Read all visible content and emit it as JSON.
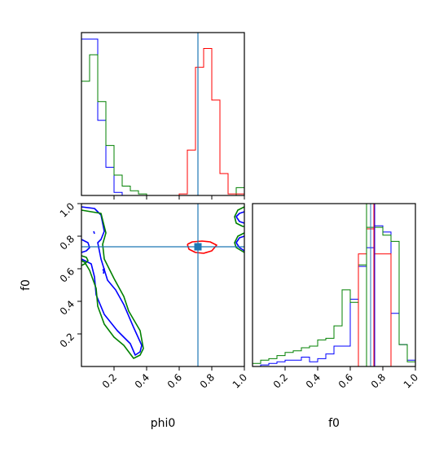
{
  "chart_data": [
    {
      "panel": "phi0-marginal",
      "type": "histogram-step",
      "xlim": [
        0,
        1
      ],
      "truth": {
        "value": 0.715,
        "color": "#1f77b4"
      },
      "series": [
        {
          "color": "#0000ff",
          "bins": [
            0,
            0.05,
            0.1,
            0.15,
            0.2,
            0.25
          ],
          "heights": [
            1.0,
            1.0,
            0.48,
            0.18,
            0.02
          ]
        },
        {
          "color": "#008000",
          "bins": [
            0,
            0.05,
            0.1,
            0.15,
            0.2,
            0.25,
            0.3,
            0.35,
            0.4,
            0.45,
            0.5,
            0.55,
            0.6,
            0.65,
            0.7,
            0.75,
            0.8,
            0.85,
            0.9,
            0.95,
            1.0
          ],
          "heights": [
            0.73,
            0.9,
            0.6,
            0.32,
            0.13,
            0.06,
            0.03,
            0.01,
            0.0,
            0.0,
            0.0,
            0.0,
            0.0,
            0.0,
            0.0,
            0.0,
            0.0,
            0.0,
            0.0,
            0.05
          ]
        },
        {
          "color": "#ff0000",
          "bins": [
            0.6,
            0.65,
            0.7,
            0.75,
            0.8,
            0.85,
            0.9,
            0.95,
            1.0
          ],
          "heights": [
            0.01,
            0.29,
            0.82,
            0.94,
            0.61,
            0.14,
            0.01,
            0.01
          ]
        }
      ],
      "tick_values": [
        0.2,
        0.4,
        0.6,
        0.8,
        1.0
      ]
    },
    {
      "panel": "phi0-vs-f0",
      "type": "contour",
      "xlabel": "phi0",
      "ylabel": "f0",
      "xlim": [
        0,
        1
      ],
      "ylim": [
        0,
        1
      ],
      "truth": {
        "x": 0.715,
        "y": 0.735,
        "color": "#1f77b4"
      },
      "x_ticks": [
        "0.2",
        "0.4",
        "0.6",
        "0.8",
        "1.0"
      ],
      "y_ticks": [
        "0.2",
        "0.4",
        "0.6",
        "0.8",
        "1.0"
      ],
      "y_tick_values": [
        0.2,
        0.4,
        0.6,
        0.8,
        1.0
      ],
      "x_tick_values": [
        0.2,
        0.4,
        0.6,
        0.8,
        1.0
      ],
      "contours": [
        {
          "color": "#0000ff",
          "points": [
            [
              0,
              0.98
            ],
            [
              0.08,
              0.97
            ],
            [
              0.12,
              0.93
            ],
            [
              0.14,
              0.83
            ],
            [
              0.12,
              0.78
            ],
            [
              0.1,
              0.76
            ],
            [
              0.12,
              0.66
            ],
            [
              0.16,
              0.53
            ],
            [
              0.21,
              0.47
            ],
            [
              0.26,
              0.38
            ],
            [
              0.32,
              0.24
            ],
            [
              0.37,
              0.13
            ],
            [
              0.36,
              0.09
            ],
            [
              0.33,
              0.07
            ],
            [
              0.3,
              0.14
            ],
            [
              0.22,
              0.22
            ],
            [
              0.14,
              0.32
            ],
            [
              0.09,
              0.44
            ],
            [
              0.08,
              0.55
            ],
            [
              0.06,
              0.63
            ],
            [
              0.0,
              0.66
            ]
          ]
        },
        {
          "color": "#008000",
          "points": [
            [
              0,
              0.96
            ],
            [
              0.12,
              0.94
            ],
            [
              0.15,
              0.82
            ],
            [
              0.13,
              0.75
            ],
            [
              0.14,
              0.66
            ],
            [
              0.2,
              0.54
            ],
            [
              0.26,
              0.43
            ],
            [
              0.29,
              0.34
            ],
            [
              0.36,
              0.22
            ],
            [
              0.38,
              0.11
            ],
            [
              0.36,
              0.07
            ],
            [
              0.32,
              0.05
            ],
            [
              0.26,
              0.13
            ],
            [
              0.2,
              0.18
            ],
            [
              0.14,
              0.26
            ],
            [
              0.1,
              0.37
            ],
            [
              0.09,
              0.48
            ],
            [
              0.05,
              0.59
            ],
            [
              0.02,
              0.64
            ],
            [
              0.0,
              0.65
            ]
          ]
        },
        {
          "color": "#0000ff",
          "points": [
            [
              0,
              0.78
            ],
            [
              0.04,
              0.76
            ],
            [
              0.05,
              0.73
            ],
            [
              0.03,
              0.71
            ],
            [
              0.0,
              0.7
            ]
          ]
        },
        {
          "color": "#008000",
          "points": [
            [
              0,
              0.68
            ],
            [
              0.03,
              0.67
            ],
            [
              0.04,
              0.65
            ],
            [
              0.02,
              0.63
            ],
            [
              0.0,
              0.62
            ]
          ]
        },
        {
          "color": "#0000ff",
          "points": [
            [
              0.13,
              0.59
            ],
            [
              0.14,
              0.6
            ],
            [
              0.135,
              0.57
            ]
          ]
        },
        {
          "color": "#0000ff",
          "points": [
            [
              0.075,
              0.83
            ],
            [
              0.08,
              0.815
            ]
          ]
        },
        {
          "color": "#ff0000",
          "points": [
            [
              0.65,
              0.75
            ],
            [
              0.68,
              0.765
            ],
            [
              0.74,
              0.77
            ],
            [
              0.79,
              0.765
            ],
            [
              0.83,
              0.745
            ],
            [
              0.8,
              0.71
            ],
            [
              0.75,
              0.695
            ],
            [
              0.7,
              0.7
            ],
            [
              0.66,
              0.72
            ],
            [
              0.65,
              0.75
            ]
          ]
        },
        {
          "color": "#0000ff",
          "points": [
            [
              1.0,
              0.8
            ],
            [
              0.97,
              0.79
            ],
            [
              0.95,
              0.76
            ],
            [
              0.97,
              0.73
            ],
            [
              1.0,
              0.71
            ]
          ]
        },
        {
          "color": "#008000",
          "points": [
            [
              1.0,
              0.82
            ],
            [
              0.96,
              0.8
            ],
            [
              0.94,
              0.76
            ],
            [
              0.95,
              0.73
            ],
            [
              1.0,
              0.7
            ]
          ]
        },
        {
          "color": "#0000ff",
          "points": [
            [
              1.0,
              0.95
            ],
            [
              0.97,
              0.94
            ],
            [
              0.95,
              0.92
            ],
            [
              0.97,
              0.89
            ],
            [
              1.0,
              0.88
            ]
          ]
        },
        {
          "color": "#008000",
          "points": [
            [
              1.0,
              0.98
            ],
            [
              0.96,
              0.96
            ],
            [
              0.94,
              0.92
            ],
            [
              0.95,
              0.88
            ],
            [
              0.99,
              0.86
            ],
            [
              1.0,
              0.86
            ]
          ]
        }
      ]
    },
    {
      "panel": "f0-marginal",
      "type": "histogram-step",
      "xlabel": "f0",
      "xlim": [
        0,
        1
      ],
      "truths": [
        {
          "value": 0.725,
          "color": "#1f77b4"
        },
        {
          "value": 0.7,
          "color": "#ff0000"
        },
        {
          "value": 0.745,
          "color": "#ff0000"
        },
        {
          "value": 0.75,
          "color": "#0000ff"
        },
        {
          "value": 0.7,
          "color": "#008000"
        }
      ],
      "x_ticks": [
        "0.2",
        "0.4",
        "0.6",
        "0.8",
        "1.0"
      ],
      "x_tick_values": [
        0.2,
        0.4,
        0.6,
        0.8,
        1.0
      ],
      "series": [
        {
          "color": "#0000ff",
          "bins": [
            0.05,
            0.1,
            0.15,
            0.2,
            0.25,
            0.3,
            0.35,
            0.4,
            0.45,
            0.5,
            0.55,
            0.6,
            0.65,
            0.7,
            0.75,
            0.8,
            0.85,
            0.9,
            0.95,
            1.0
          ],
          "heights": [
            0.01,
            0.02,
            0.03,
            0.04,
            0.04,
            0.06,
            0.03,
            0.05,
            0.08,
            0.13,
            0.13,
            0.43,
            0.64,
            0.76,
            0.9,
            0.86,
            0.34,
            0.14,
            0.04
          ]
        },
        {
          "color": "#008000",
          "bins": [
            0,
            0.05,
            0.1,
            0.15,
            0.2,
            0.25,
            0.3,
            0.35,
            0.4,
            0.45,
            0.5,
            0.55,
            0.6,
            0.65,
            0.7,
            0.75,
            0.8,
            0.85,
            0.9,
            0.95,
            1.0
          ],
          "heights": [
            0.02,
            0.04,
            0.05,
            0.07,
            0.09,
            0.1,
            0.12,
            0.13,
            0.17,
            0.18,
            0.26,
            0.49,
            0.41,
            0.65,
            0.89,
            0.89,
            0.84,
            0.8,
            0.14,
            0.03
          ]
        },
        {
          "color": "#ff0000",
          "bins": [
            0.65,
            0.7,
            0.75,
            0.8,
            0.85
          ],
          "heights": [
            0.72,
            0.88,
            0.72,
            0.72
          ]
        }
      ]
    }
  ]
}
